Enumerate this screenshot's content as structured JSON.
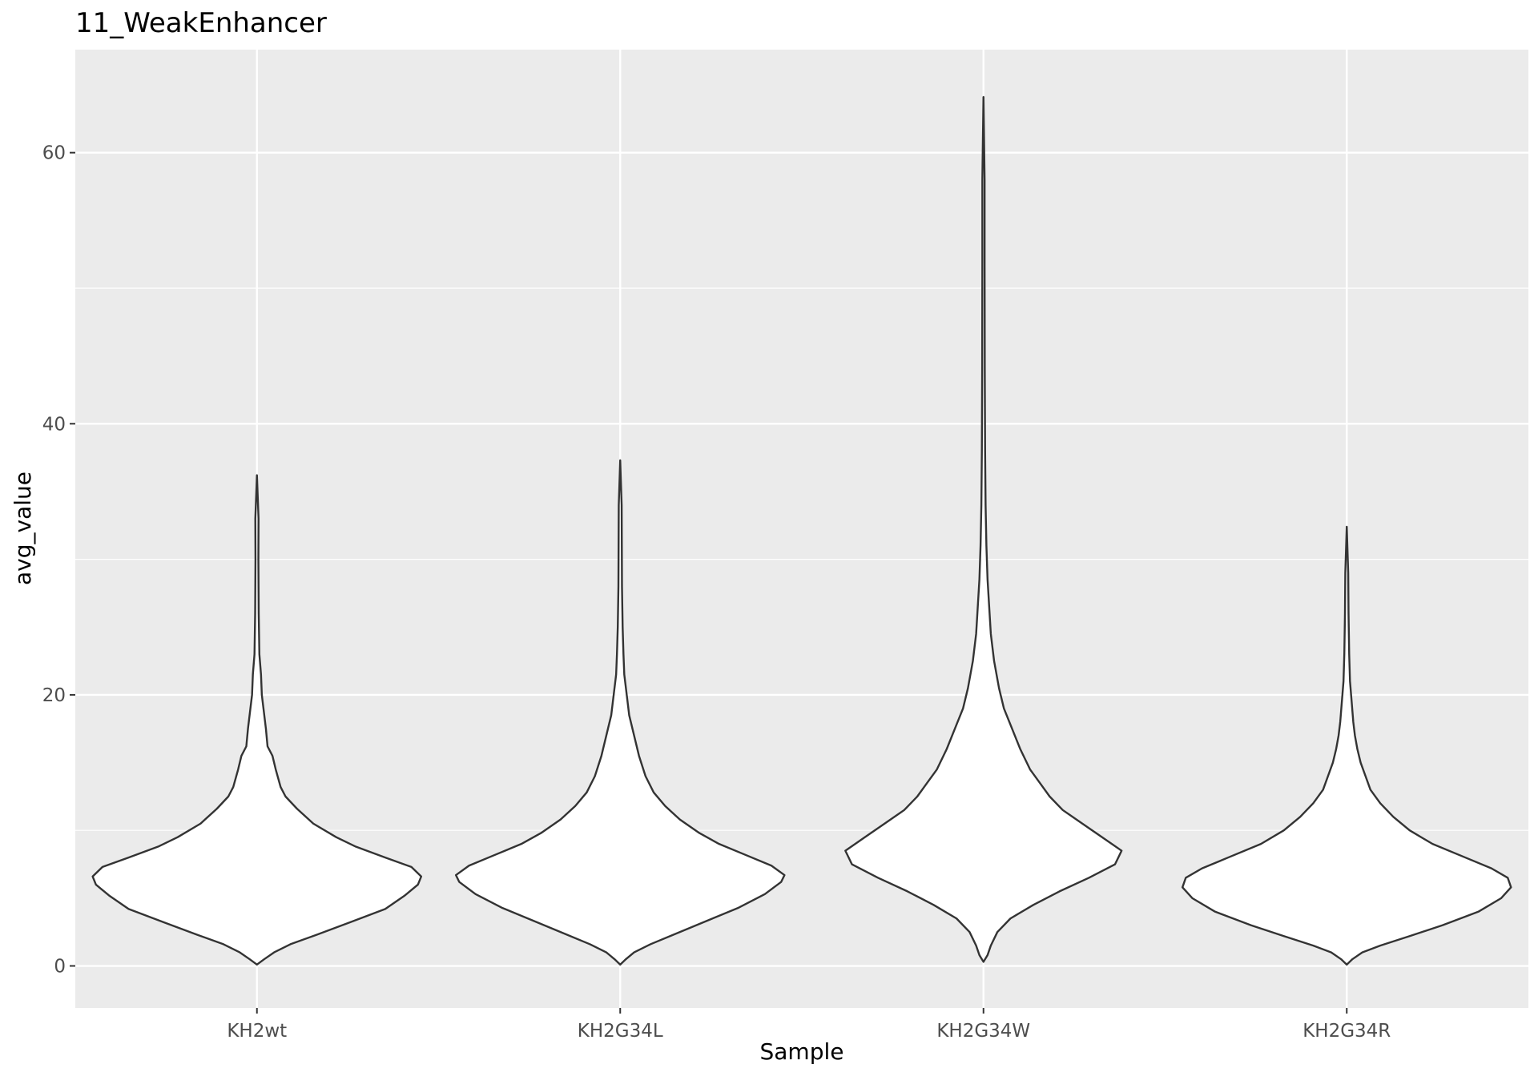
{
  "chart_data": {
    "type": "violin",
    "title": "11_WeakEnhancer",
    "xlabel": "Sample",
    "ylabel": "avg_value",
    "categories": [
      "KH2wt",
      "KH2G34L",
      "KH2G34W",
      "KH2G34R"
    ],
    "ylim": [
      -3.1,
      67.6
    ],
    "yticks": [
      0,
      20,
      40,
      60
    ],
    "grid": true,
    "legend": "none",
    "colors": {
      "panel": "#ebebeb",
      "grid": "#ffffff",
      "violin_fill": "#ffffff",
      "violin_stroke": "#333333",
      "tick": "#333333"
    },
    "series": [
      {
        "category": "KH2wt",
        "min": 0.1,
        "max": 36.2,
        "density": [
          [
            0.1,
            0.0
          ],
          [
            0.5,
            0.04
          ],
          [
            1.0,
            0.1
          ],
          [
            1.6,
            0.2
          ],
          [
            2.3,
            0.36
          ],
          [
            3.2,
            0.56
          ],
          [
            4.2,
            0.78
          ],
          [
            5.2,
            0.9
          ],
          [
            6.0,
            0.98
          ],
          [
            6.6,
            1.0
          ],
          [
            7.3,
            0.94
          ],
          [
            8.0,
            0.78
          ],
          [
            8.8,
            0.6
          ],
          [
            9.5,
            0.48
          ],
          [
            10.5,
            0.34
          ],
          [
            11.6,
            0.24
          ],
          [
            12.5,
            0.17
          ],
          [
            13.2,
            0.14
          ],
          [
            14.5,
            0.11
          ],
          [
            15.5,
            0.09
          ],
          [
            16.2,
            0.06
          ],
          [
            17.5,
            0.05
          ],
          [
            19.0,
            0.035
          ],
          [
            20.0,
            0.025
          ],
          [
            21.5,
            0.02
          ],
          [
            23.0,
            0.01
          ],
          [
            26.0,
            0.006
          ],
          [
            30.0,
            0.004
          ],
          [
            33.0,
            0.005
          ],
          [
            36.2,
            0.0
          ]
        ]
      },
      {
        "category": "KH2G34L",
        "min": 0.1,
        "max": 37.3,
        "density": [
          [
            0.1,
            0.0
          ],
          [
            0.5,
            0.03
          ],
          [
            1.0,
            0.08
          ],
          [
            1.6,
            0.18
          ],
          [
            2.4,
            0.34
          ],
          [
            3.3,
            0.52
          ],
          [
            4.3,
            0.72
          ],
          [
            5.3,
            0.88
          ],
          [
            6.2,
            0.98
          ],
          [
            6.7,
            1.0
          ],
          [
            7.4,
            0.92
          ],
          [
            8.2,
            0.76
          ],
          [
            9.0,
            0.6
          ],
          [
            9.8,
            0.48
          ],
          [
            10.8,
            0.36
          ],
          [
            11.8,
            0.27
          ],
          [
            12.8,
            0.2
          ],
          [
            14.0,
            0.15
          ],
          [
            15.5,
            0.11
          ],
          [
            17.0,
            0.08
          ],
          [
            18.5,
            0.05
          ],
          [
            20.0,
            0.035
          ],
          [
            21.5,
            0.02
          ],
          [
            23.0,
            0.015
          ],
          [
            25.0,
            0.01
          ],
          [
            28.0,
            0.006
          ],
          [
            31.0,
            0.005
          ],
          [
            34.0,
            0.004
          ],
          [
            37.3,
            0.0
          ]
        ]
      },
      {
        "category": "KH2G34W",
        "min": 0.3,
        "max": 64.1,
        "density": [
          [
            0.3,
            0.0
          ],
          [
            0.8,
            0.02
          ],
          [
            1.5,
            0.04
          ],
          [
            2.5,
            0.08
          ],
          [
            3.5,
            0.16
          ],
          [
            4.5,
            0.3
          ],
          [
            5.5,
            0.46
          ],
          [
            6.5,
            0.64
          ],
          [
            7.5,
            0.8
          ],
          [
            8.5,
            0.84
          ],
          [
            9.5,
            0.72
          ],
          [
            10.5,
            0.6
          ],
          [
            11.5,
            0.48
          ],
          [
            12.5,
            0.4
          ],
          [
            13.5,
            0.34
          ],
          [
            14.5,
            0.28
          ],
          [
            16.0,
            0.22
          ],
          [
            17.5,
            0.17
          ],
          [
            19.0,
            0.12
          ],
          [
            20.5,
            0.09
          ],
          [
            22.5,
            0.06
          ],
          [
            24.5,
            0.04
          ],
          [
            26.5,
            0.03
          ],
          [
            28.5,
            0.02
          ],
          [
            31.0,
            0.013
          ],
          [
            34.0,
            0.008
          ],
          [
            38.0,
            0.005
          ],
          [
            44.0,
            0.003
          ],
          [
            52.0,
            0.002
          ],
          [
            58.0,
            0.002
          ],
          [
            64.1,
            0.0
          ]
        ]
      },
      {
        "category": "KH2G34R",
        "min": 0.1,
        "max": 32.4,
        "density": [
          [
            0.1,
            0.0
          ],
          [
            0.5,
            0.03
          ],
          [
            1.0,
            0.09
          ],
          [
            1.5,
            0.2
          ],
          [
            2.2,
            0.38
          ],
          [
            3.0,
            0.58
          ],
          [
            4.0,
            0.8
          ],
          [
            5.0,
            0.94
          ],
          [
            5.8,
            1.0
          ],
          [
            6.5,
            0.98
          ],
          [
            7.2,
            0.88
          ],
          [
            8.0,
            0.72
          ],
          [
            9.0,
            0.52
          ],
          [
            10.0,
            0.38
          ],
          [
            11.0,
            0.28
          ],
          [
            12.0,
            0.2
          ],
          [
            13.0,
            0.14
          ],
          [
            14.0,
            0.11
          ],
          [
            15.0,
            0.08
          ],
          [
            16.0,
            0.06
          ],
          [
            17.0,
            0.045
          ],
          [
            18.0,
            0.035
          ],
          [
            19.5,
            0.025
          ],
          [
            21.0,
            0.015
          ],
          [
            23.0,
            0.01
          ],
          [
            26.0,
            0.006
          ],
          [
            29.0,
            0.004
          ],
          [
            32.4,
            0.0
          ]
        ]
      }
    ]
  }
}
